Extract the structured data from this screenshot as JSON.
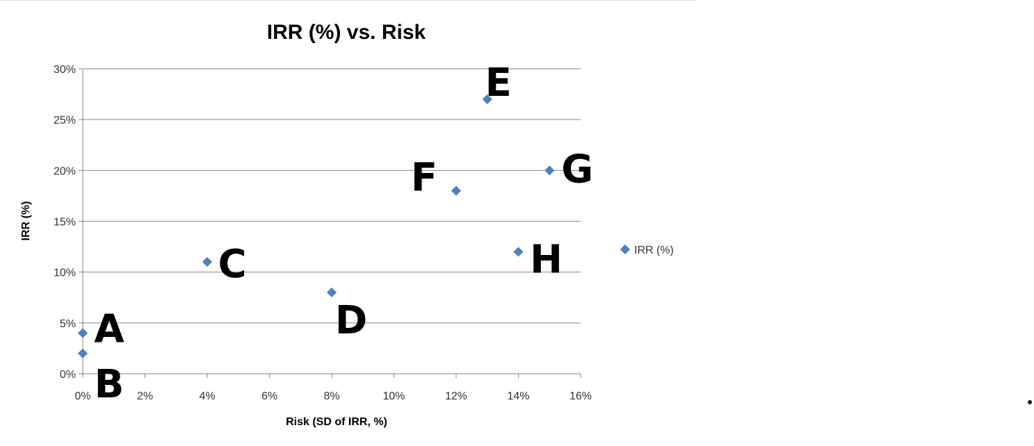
{
  "chart_data": {
    "type": "scatter",
    "title": "IRR (%) vs. Risk",
    "xlabel": "Risk (SD of IRR, %)",
    "ylabel": "IRR (%)",
    "xlim": [
      0,
      16
    ],
    "ylim": [
      0,
      30
    ],
    "x_ticks": [
      "0%",
      "2%",
      "4%",
      "6%",
      "8%",
      "10%",
      "12%",
      "14%",
      "16%"
    ],
    "y_ticks": [
      "0%",
      "5%",
      "10%",
      "15%",
      "20%",
      "25%",
      "30%"
    ],
    "grid": "horizontal",
    "legend_position": "right",
    "series": [
      {
        "name": "IRR (%)",
        "color": "#4F81BD",
        "marker": "diamond",
        "points": [
          {
            "x": 0,
            "y": 4
          },
          {
            "x": 0,
            "y": 2
          },
          {
            "x": 4,
            "y": 11
          },
          {
            "x": 8,
            "y": 8
          },
          {
            "x": 13,
            "y": 27
          },
          {
            "x": 12,
            "y": 18
          },
          {
            "x": 15,
            "y": 20
          },
          {
            "x": 14,
            "y": 12
          }
        ]
      }
    ],
    "annotations": [
      {
        "text": "A",
        "x": 0,
        "y": 4
      },
      {
        "text": "B",
        "x": 0,
        "y": 2
      },
      {
        "text": "C",
        "x": 4,
        "y": 11
      },
      {
        "text": "D",
        "x": 8,
        "y": 8
      },
      {
        "text": "E",
        "x": 13,
        "y": 27
      },
      {
        "text": "F",
        "x": 12,
        "y": 18
      },
      {
        "text": "G",
        "x": 15,
        "y": 20
      },
      {
        "text": "H",
        "x": 14,
        "y": 12
      }
    ]
  }
}
